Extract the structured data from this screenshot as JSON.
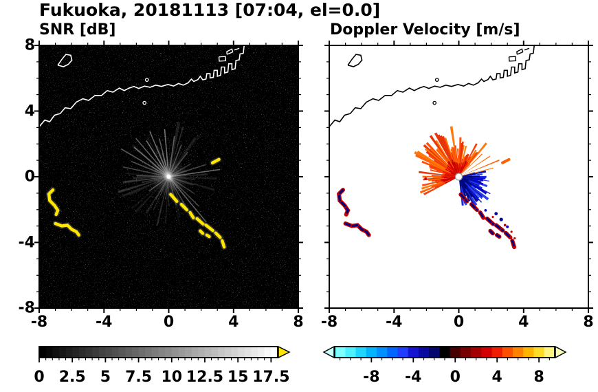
{
  "title": "Fukuoka, 20181113 [07:04, el=0.0]",
  "panels": [
    {
      "id": "snr",
      "subtitle": "SNR [dB]"
    },
    {
      "id": "vel",
      "subtitle": "Doppler Velocity [m/s]"
    }
  ],
  "chart_data": [
    {
      "type": "heatmap",
      "title": "SNR [dB]",
      "xlim": [
        -8,
        8
      ],
      "ylim": [
        -8,
        8
      ],
      "xticks": [
        -8,
        -4,
        0,
        4,
        8
      ],
      "yticks": [
        8,
        4,
        0,
        -4,
        -8
      ],
      "minor_tick_step": 1,
      "grid": false,
      "background": "#000000",
      "coast_color": "#ffffff",
      "description": "Radar SNR PPI: black speckled background, gray radial beam streaks from radar at origin, bright yellow high-SNR echoes southwest of radar and along a SE diagonal line, white coastline of the bay across the top",
      "colorbar": {
        "min": 0,
        "max": 18,
        "tick_values": [
          0,
          2.5,
          5,
          7.5,
          10,
          12.5,
          15,
          17.5
        ],
        "tick_labels": [
          "0",
          "2.5",
          "5",
          "7.5",
          "10",
          "12.5",
          "15",
          "17.5"
        ],
        "minor_step": 0.5,
        "style": "grayscale black to white",
        "over_arrow_color": "#ffe600"
      }
    },
    {
      "type": "heatmap",
      "title": "Doppler Velocity [m/s]",
      "xlim": [
        -8,
        8
      ],
      "ylim": [
        -8,
        8
      ],
      "xticks": [
        -8,
        -4,
        0,
        4,
        8
      ],
      "yticks": [
        8,
        4,
        0,
        -4,
        -8
      ],
      "minor_tick_step": 1,
      "grid": false,
      "background": "#ffffff",
      "coast_color": "#000000",
      "description": "Doppler velocity PPI: orange/red spiky fan (positive velocities) north and northwest of radar, compact dark-blue lobe (negative velocities) southeast of radar, scattered red/blue clutter echoes, black coastline",
      "colorbar": {
        "min": -11.5,
        "max": 9.5,
        "tick_values": [
          -8,
          -4,
          0,
          4,
          8
        ],
        "tick_labels": [
          "-8",
          "-4",
          "0",
          "4",
          "8"
        ],
        "minor_step": 1,
        "under_arrow_color": "#c8ffff",
        "over_arrow_color": "#ffffb4",
        "colors": [
          "#7dffff",
          "#4df0ff",
          "#1fd4ff",
          "#00b4ff",
          "#0090ff",
          "#0066ff",
          "#1f3cff",
          "#1414d2",
          "#0a0aa0",
          "#05056e",
          "#000000",
          "#460000",
          "#780000",
          "#a50000",
          "#d20000",
          "#f01e00",
          "#ff5000",
          "#ff8200",
          "#ffb400",
          "#ffdc28",
          "#fff580"
        ]
      }
    }
  ],
  "features": {
    "radar_center": [
      0,
      0
    ],
    "coast_main": [
      [
        -8,
        3.05
      ],
      [
        -7.65,
        3.45
      ],
      [
        -7.35,
        3.35
      ],
      [
        -7.05,
        3.75
      ],
      [
        -6.7,
        3.85
      ],
      [
        -6.4,
        4.2
      ],
      [
        -6.05,
        4.15
      ],
      [
        -5.7,
        4.55
      ],
      [
        -5.3,
        4.75
      ],
      [
        -4.95,
        4.65
      ],
      [
        -4.55,
        4.95
      ],
      [
        -4.15,
        4.95
      ],
      [
        -3.8,
        5.25
      ],
      [
        -3.45,
        5.15
      ],
      [
        -3.05,
        5.4
      ],
      [
        -2.75,
        5.25
      ],
      [
        -2.45,
        5.4
      ],
      [
        -2.15,
        5.5
      ],
      [
        -1.85,
        5.38
      ],
      [
        -1.5,
        5.52
      ],
      [
        -1.15,
        5.45
      ],
      [
        -0.8,
        5.58
      ],
      [
        -0.45,
        5.5
      ],
      [
        -0.05,
        5.62
      ],
      [
        0.3,
        5.52
      ],
      [
        0.6,
        5.68
      ],
      [
        0.9,
        5.58
      ],
      [
        1.2,
        5.72
      ],
      [
        1.4,
        5.95
      ],
      [
        1.55,
        5.8
      ],
      [
        1.8,
        5.92
      ],
      [
        1.95,
        6.12
      ],
      [
        2.1,
        5.9
      ],
      [
        2.3,
        5.95
      ],
      [
        2.35,
        6.28
      ],
      [
        2.55,
        6.28
      ],
      [
        2.55,
        6.02
      ],
      [
        2.75,
        6.05
      ],
      [
        2.8,
        6.48
      ],
      [
        3.0,
        6.48
      ],
      [
        3.0,
        6.12
      ],
      [
        3.2,
        6.18
      ],
      [
        3.25,
        6.68
      ],
      [
        3.45,
        6.68
      ],
      [
        3.45,
        6.32
      ],
      [
        3.65,
        6.38
      ],
      [
        3.7,
        6.88
      ],
      [
        3.9,
        6.88
      ],
      [
        3.9,
        6.52
      ],
      [
        4.1,
        6.58
      ],
      [
        4.15,
        7.08
      ],
      [
        4.35,
        7.12
      ],
      [
        4.4,
        7.48
      ],
      [
        4.6,
        7.52
      ],
      [
        4.65,
        7.95
      ],
      [
        4.75,
        8.2
      ]
    ],
    "island": [
      [
        -6.85,
        6.8
      ],
      [
        -6.6,
        7.15
      ],
      [
        -6.35,
        7.45
      ],
      [
        -6.05,
        7.4
      ],
      [
        -5.98,
        7.1
      ],
      [
        -6.2,
        6.85
      ],
      [
        -6.5,
        6.7
      ],
      [
        -6.85,
        6.8
      ]
    ],
    "coast_extra": [
      [
        [
          3.1,
          7.3
        ],
        [
          3.5,
          7.32
        ],
        [
          3.52,
          7.06
        ],
        [
          3.12,
          7.04
        ],
        [
          3.1,
          7.3
        ]
      ],
      [
        [
          3.6,
          7.45
        ],
        [
          3.95,
          7.6
        ],
        [
          3.9,
          7.78
        ],
        [
          3.58,
          7.62
        ],
        [
          3.6,
          7.45
        ]
      ],
      [
        [
          4.05,
          7.72
        ],
        [
          4.35,
          7.82
        ]
      ]
    ],
    "islets": [
      [
        -1.35,
        5.9
      ],
      [
        -1.5,
        4.5
      ]
    ],
    "snr_streaks": [
      [
        8,
        3.2,
        0.45
      ],
      [
        18,
        2.4,
        0.3
      ],
      [
        30,
        1.6,
        0.25
      ],
      [
        52,
        1.9,
        0.3
      ],
      [
        68,
        2.1,
        0.35
      ],
      [
        82,
        2.5,
        0.4
      ],
      [
        95,
        2.9,
        0.5
      ],
      [
        104,
        2.4,
        0.4
      ],
      [
        113,
        3.0,
        0.45
      ],
      [
        122,
        2.6,
        0.5
      ],
      [
        131,
        3.1,
        0.4
      ],
      [
        140,
        2.8,
        0.45
      ],
      [
        150,
        3.4,
        0.4
      ],
      [
        158,
        2.5,
        0.35
      ],
      [
        168,
        2.9,
        0.3
      ],
      [
        178,
        2.0,
        0.25
      ],
      [
        192,
        1.7,
        0.22
      ],
      [
        215,
        1.5,
        0.2
      ],
      [
        240,
        1.6,
        0.22
      ],
      [
        262,
        1.4,
        0.2
      ],
      [
        285,
        1.8,
        0.25
      ],
      [
        300,
        2.4,
        0.3
      ],
      [
        310,
        3.6,
        0.4
      ],
      [
        316,
        2.6,
        0.3
      ],
      [
        327,
        1.9,
        0.25
      ],
      [
        342,
        1.6,
        0.22
      ]
    ],
    "echo_paths": [
      {
        "id": "A",
        "pts": [
          [
            -7.15,
            -0.8
          ],
          [
            -7.4,
            -1.05
          ],
          [
            -7.35,
            -1.45
          ],
          [
            -7.05,
            -1.75
          ],
          [
            -6.85,
            -2.05
          ],
          [
            -6.95,
            -2.3
          ]
        ]
      },
      {
        "id": "B",
        "pts": [
          [
            -7.0,
            -2.85
          ],
          [
            -6.6,
            -3.0
          ],
          [
            -6.25,
            -2.95
          ],
          [
            -6.0,
            -3.2
          ],
          [
            -5.7,
            -3.35
          ],
          [
            -5.55,
            -3.55
          ]
        ]
      },
      {
        "id": "C1",
        "pts": [
          [
            0.12,
            -1.08
          ],
          [
            0.5,
            -1.5
          ]
        ]
      },
      {
        "id": "C2",
        "pts": [
          [
            0.78,
            -1.68
          ],
          [
            1.12,
            -2.02
          ]
        ]
      },
      {
        "id": "C3",
        "pts": [
          [
            1.32,
            -2.18
          ],
          [
            1.52,
            -2.5
          ]
        ]
      },
      {
        "id": "C4",
        "pts": [
          [
            1.75,
            -2.55
          ],
          [
            2.12,
            -2.88
          ]
        ]
      },
      {
        "id": "C5",
        "pts": [
          [
            2.3,
            -2.95
          ],
          [
            2.72,
            -3.28
          ]
        ]
      },
      {
        "id": "C6",
        "pts": [
          [
            2.9,
            -3.42
          ],
          [
            3.18,
            -3.7
          ]
        ]
      },
      {
        "id": "C7",
        "pts": [
          [
            3.3,
            -3.9
          ],
          [
            3.42,
            -4.28
          ]
        ]
      },
      {
        "id": "D",
        "pts": [
          [
            1.95,
            -3.3
          ],
          [
            2.1,
            -3.45
          ]
        ]
      },
      {
        "id": "E",
        "pts": [
          [
            2.35,
            -3.55
          ],
          [
            2.5,
            -3.65
          ]
        ]
      },
      {
        "id": "S",
        "pts": [
          [
            2.7,
            0.85
          ],
          [
            3.1,
            1.05
          ]
        ]
      }
    ],
    "snr_echo_color": "#ffe600",
    "vel_echo_colors": {
      "red": "#c80000",
      "navy": "#000080",
      "orange": "#ff6000"
    },
    "vel_specks": [
      [
        2.3,
        -2.25,
        0.1,
        "#0008aa"
      ],
      [
        2.62,
        -2.6,
        0.11,
        "#000899"
      ],
      [
        3.0,
        -3.05,
        0.09,
        "#0a0acc"
      ],
      [
        1.65,
        -2.05,
        0.08,
        "#0a0acc"
      ],
      [
        2.1,
        -2.45,
        0.07,
        "#d00000"
      ],
      [
        2.85,
        -2.95,
        0.08,
        "#d00000"
      ],
      [
        3.25,
        -3.35,
        0.07,
        "#c40000"
      ],
      [
        3.45,
        -3.75,
        0.07,
        "#d00000"
      ],
      [
        -2.05,
        -0.12,
        0.08,
        "#d00000"
      ]
    ],
    "vel_fan": {
      "warm": {
        "a0": 48,
        "a1": 208,
        "step": 2.2,
        "lmin": 1.0,
        "lmax": 2.7,
        "half": 1.5,
        "boost": 0.7,
        "boost_a0": 95,
        "boost_a1": 155,
        "colors": [
          "#ff4600",
          "#ff5c00",
          "#f23600",
          "#ff7300",
          "#e62d00"
        ]
      },
      "warm_core": {
        "a0": 58,
        "a1": 205,
        "step": 3,
        "lmin": 0.45,
        "lmax": 1.15,
        "half": 2.2,
        "colors": [
          "#d40000",
          "#bf0000",
          "#ea1600"
        ]
      },
      "cool": {
        "a0": -82,
        "a1": 14,
        "step": 1.6,
        "lmin": 0.6,
        "lmax": 1.8,
        "half": 2.1,
        "boost": 0.6,
        "boost_a0": -62,
        "boost_a1": -15,
        "colors": [
          "#0000cc",
          "#000a99",
          "#1020e0",
          "#000766",
          "#2238ee"
        ]
      },
      "cool_core": {
        "a0": -78,
        "a1": 6,
        "step": 2.4,
        "lmin": 0.4,
        "lmax": 1.0,
        "half": 2.4,
        "colors": [
          "#000666",
          "#000a80",
          "#041090"
        ]
      },
      "spikes": [
        [
          22,
          2.7,
          "#ff5c00"
        ],
        [
          33,
          2.3,
          "#ff7300"
        ],
        [
          44,
          2.0,
          "#ff5c00"
        ],
        [
          14,
          2.2,
          "#ff8200"
        ],
        [
          200,
          1.8,
          "#ff4600"
        ],
        [
          -28,
          2.2,
          "#0008bb"
        ],
        [
          -48,
          2.1,
          "#000899"
        ],
        [
          -8,
          1.9,
          "#0a14cc"
        ]
      ]
    }
  }
}
